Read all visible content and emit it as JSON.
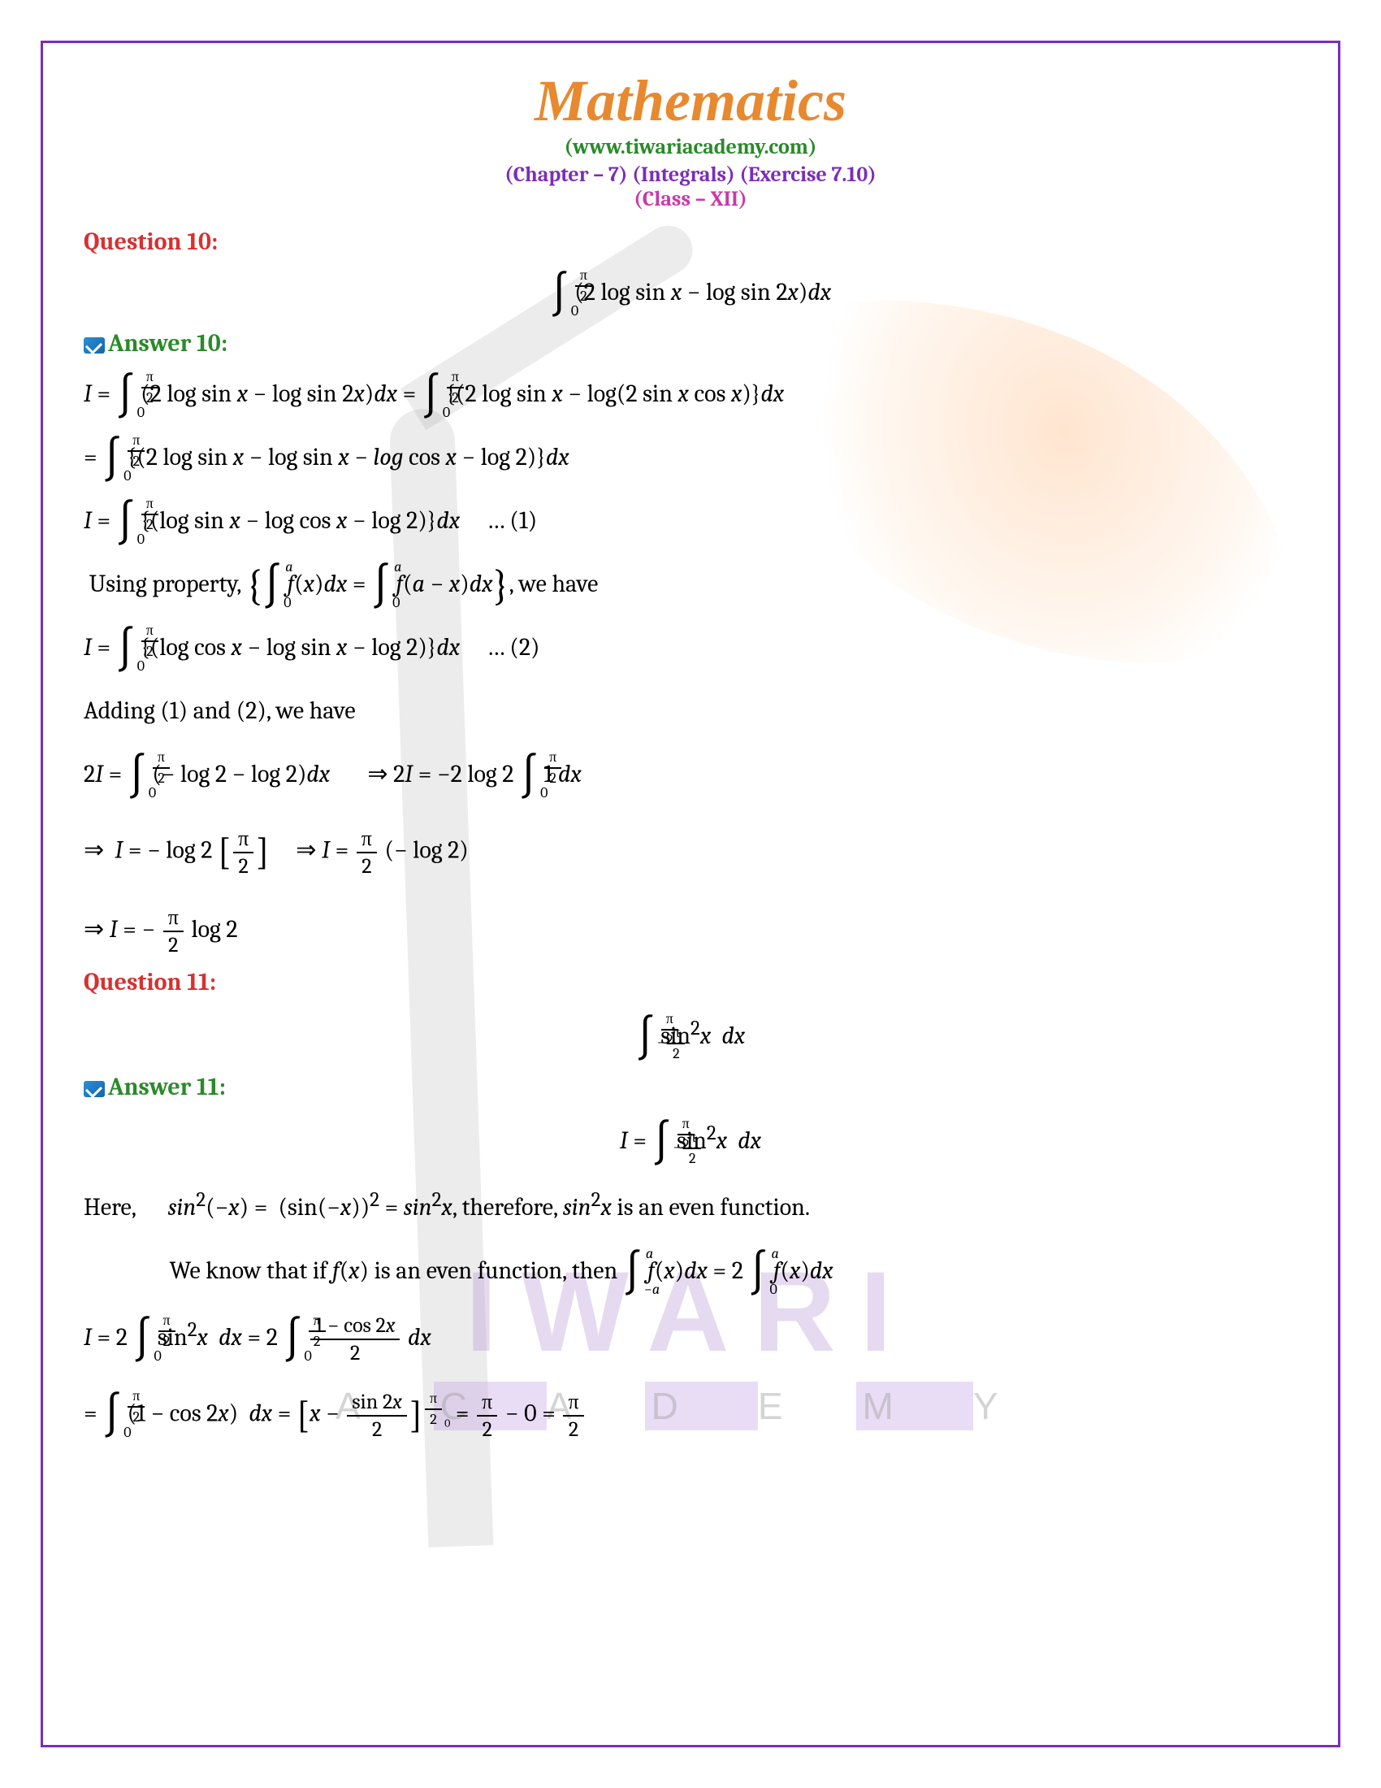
{
  "colors": {
    "title": "#e8892f",
    "website": "#2a8a2a",
    "chapter": "#7b2db8",
    "class": "#c73aa8",
    "question": "#d83030",
    "answer": "#2a8a2a",
    "text": "#000000",
    "border": "#7b2db8"
  },
  "header": {
    "title": "Mathematics",
    "website": "(www.tiwariacademy.com)",
    "chapter": "(Chapter – 7) (Integrals) (Exercise 7.10)",
    "class": "(Class – XII)"
  },
  "watermark": {
    "main": "IWARI",
    "sub_items": [
      "A",
      "C",
      "A",
      "D",
      "E",
      "M",
      "Y"
    ]
  },
  "q10": {
    "label": "Question 10:",
    "problem_html": "<span class='int'>∫<span class='ub'><span class='frac sfrac'><span class='num'>π</span><span class='den'>2</span></span></span><span class='lb'>0</span></span> (2 log sin <span class='ital'>x</span> − log sin 2<span class='ital'>x</span>)<span class='ital'>dx</span>",
    "answer_label": "Answer 10:",
    "lines": [
      "<span class='ital'>I</span> = <span class='int'>∫<span class='ub'><span class='frac sfrac'><span class='num'>π</span><span class='den'>2</span></span></span><span class='lb'>0</span></span> (2 log sin <span class='ital'>x</span> − log sin 2<span class='ital'>x</span>)<span class='ital'>dx</span> = <span class='int'>∫<span class='ub'><span class='frac sfrac'><span class='num'>π</span><span class='den'>2</span></span></span><span class='lb'>0</span></span> {(2 log sin <span class='ital'>x</span> − log(2 sin <span class='ital'>x</span> cos <span class='ital'>x</span>)}<span class='ital'>dx</span>",
      "= <span class='int'>∫<span class='ub'><span class='frac sfrac'><span class='num'>π</span><span class='den'>2</span></span></span><span class='lb'>0</span></span> {(2 log sin <span class='ital'>x</span> − log sin <span class='ital'>x</span> − <span class='ital'>log</span> cos <span class='ital'>x</span> − log 2)}<span class='ital'>dx</span>",
      "<span class='ital'>I</span> = <span class='int'>∫<span class='ub'><span class='frac sfrac'><span class='num'>π</span><span class='den'>2</span></span></span><span class='lb'>0</span></span> {(log sin <span class='ital'>x</span> − log cos <span class='ital'>x</span> − log 2)}<span class='ital'>dx</span> &nbsp;&nbsp;&nbsp; … (1)",
      "&nbsp;Using property, <span class='brace'>{</span><span class='int'>∫<span class='ub'><span class='ital'>a</span></span><span class='lb'>0</span></span> <span class='ital'>f</span>(<span class='ital'>x</span>)<span class='ital'>dx</span> = <span class='int'>∫<span class='ub'><span class='ital'>a</span></span><span class='lb'>0</span></span> <span class='ital'>f</span>(<span class='ital'>a</span> − <span class='ital'>x</span>)<span class='ital'>dx</span><span class='brace'>}</span>, we have",
      "<span class='ital'>I</span> = <span class='int'>∫<span class='ub'><span class='frac sfrac'><span class='num'>π</span><span class='den'>2</span></span></span><span class='lb'>0</span></span> {(log cos <span class='ital'>x</span> − log sin <span class='ital'>x</span> − log 2)}<span class='ital'>dx</span> &nbsp;&nbsp;&nbsp; … (2)",
      "Adding (1) and (2), we have",
      "2<span class='ital'>I</span> = <span class='int'>∫<span class='ub'><span class='frac sfrac'><span class='num'>π</span><span class='den'>2</span></span></span><span class='lb'>0</span></span> (− log 2 − log 2)<span class='ital'>dx</span> &nbsp;&nbsp;&nbsp;&nbsp;&nbsp; ⇒ 2<span class='ital'>I</span> = −2 log 2 <span class='int'>∫<span class='ub'><span class='frac sfrac'><span class='num'>π</span><span class='den'>2</span></span></span><span class='lb'>0</span></span> 1 <span class='ital'>dx</span>",
      "⇒ &nbsp;<span class='ital'>I</span> = − log 2 <span class='brk'>[</span><span class='frac'><span class='num'>π</span><span class='den'>2</span></span><span class='brk'>]</span> &nbsp;&nbsp;&nbsp; ⇒ <span class='ital'>I</span> = <span class='frac'><span class='num'>π</span><span class='den'>2</span></span> (− log 2)",
      "⇒ <span class='ital'>I</span> = − <span class='frac'><span class='num'>π</span><span class='den'>2</span></span> log 2"
    ]
  },
  "q11": {
    "label": "Question 11:",
    "problem_html": "<span class='int'>∫<span class='ub'><span class='frac sfrac'><span class='num'>π</span><span class='den'>2</span></span></span><span class='lb'>−<span class='frac sfrac'><span class='num'>π</span><span class='den'>2</span></span></span></span> sin<sup>2</sup><span class='ital'>x</span>&nbsp; <span class='ital'>dx</span>",
    "answer_label": "Answer 11:",
    "lines": [
      "<div class='math-center'><span class='ital'>I</span> = <span class='int'>∫<span class='ub'><span class='frac sfrac'><span class='num'>π</span><span class='den'>2</span></span></span><span class='lb'>−<span class='frac sfrac'><span class='num'>π</span><span class='den'>2</span></span></span></span> sin<sup>2</sup><span class='ital'>x</span>&nbsp; <span class='ital'>dx</span></div>",
      "Here, &nbsp;&nbsp;&nbsp;&nbsp; <span class='ital'>sin</span><sup>2</sup>(−<span class='ital'>x</span>) = &nbsp;(sin(−<span class='ital'>x</span>))<sup>2</sup> = <span class='ital'>sin</span><sup>2</sup><span class='ital'>x</span>, therefore, <span class='ital'>sin</span><sup>2</sup><span class='ital'>x</span> is an even function.",
      "&nbsp;&nbsp;&nbsp;&nbsp;&nbsp;&nbsp;&nbsp;&nbsp;&nbsp;&nbsp;&nbsp;&nbsp;&nbsp;&nbsp;&nbsp;&nbsp;We know that if <span class='ital'>f</span>(<span class='ital'>x</span>) is an even function, then <span class='int'>∫<span class='ub'><span class='ital'>a</span></span><span class='lb'>−<span class='ital'>a</span></span></span> <span class='ital'>f</span>(<span class='ital'>x</span>)<span class='ital'>dx</span> = 2 <span class='int'>∫<span class='ub'><span class='ital'>a</span></span><span class='lb'>0</span></span> <span class='ital'>f</span>(<span class='ital'>x</span>)<span class='ital'>dx</span>",
      "<span class='ital'>I</span> = 2 <span class='int'>∫<span class='ub'><span class='frac sfrac'><span class='num'>π</span><span class='den'>2</span></span></span><span class='lb'>0</span></span> sin<sup>2</sup><span class='ital'>x</span>&nbsp; <span class='ital'>dx</span> = 2 <span class='int'>∫<span class='ub'><span class='frac sfrac'><span class='num'>π</span><span class='den'>2</span></span></span><span class='lb'>0</span></span> <span class='frac'><span class='num'>1 − cos 2<span class='ital'>x</span></span><span class='den'>2</span></span> <span class='ital'>dx</span>",
      "= <span class='int'>∫<span class='ub'><span class='frac sfrac'><span class='num'>π</span><span class='den'>2</span></span></span><span class='lb'>0</span></span> (1 − cos 2<span class='ital'>x</span>) &nbsp;<span class='ital'>dx</span> = <span class='brk'>[</span><span class='ital'>x</span> − <span class='frac'><span class='num'>sin 2<span class='ital'>x</span></span><span class='den'>2</span></span><span class='brk'>]</span><span class='sup-brk'><span class='frac sfrac'><span class='num'>π</span><span class='den'>2</span></span></span><span class='sub-brk'>0</span> = <span class='frac'><span class='num'>π</span><span class='den'>2</span></span> − 0 = <span class='frac'><span class='num'>π</span><span class='den'>2</span></span>"
    ]
  }
}
